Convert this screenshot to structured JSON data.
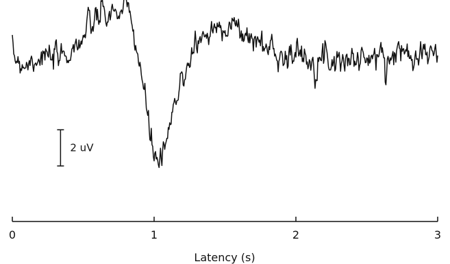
{
  "chart_data": {
    "type": "line",
    "title": "",
    "xlabel": "Latency (s)",
    "ylabel": "",
    "xlim": [
      0,
      3
    ],
    "ylim": [
      -8.2,
      2.8
    ],
    "x_ticks": [
      0,
      1,
      2,
      3
    ],
    "x_tick_labels": [
      "0",
      "1",
      "2",
      "3"
    ],
    "grid": false,
    "legend": "none",
    "scale_bar": {
      "label": "2 uV",
      "value": 2,
      "x": 0.34,
      "y_bottom": -6.0
    },
    "series": [
      {
        "color": "#111111",
        "x": [
          0,
          0.1,
          0.2,
          0.3,
          0.4,
          0.5,
          0.55,
          0.6,
          0.7,
          0.8,
          0.83,
          0.86,
          0.9,
          0.93,
          0.95,
          0.98,
          1.0,
          1.02,
          1.05,
          1.08,
          1.1,
          1.15,
          1.2,
          1.25,
          1.3,
          1.4,
          1.5,
          1.55,
          1.6,
          1.7,
          1.8,
          1.9,
          2.0,
          2.2,
          2.4,
          2.6,
          2.8,
          2.9,
          3.0
        ],
        "y": [
          0.0,
          -0.3,
          0.1,
          -0.2,
          0.3,
          1.1,
          1.7,
          2.2,
          2.4,
          2.6,
          2.3,
          1.2,
          -0.3,
          -2.0,
          -3.2,
          -4.6,
          -5.4,
          -5.6,
          -5.7,
          -5.3,
          -4.2,
          -2.6,
          -1.2,
          0.0,
          0.9,
          1.4,
          1.9,
          1.9,
          1.4,
          1.0,
          0.6,
          0.2,
          0.1,
          0.0,
          -0.1,
          0.0,
          0.4,
          0.3,
          0.1
        ]
      }
    ]
  }
}
